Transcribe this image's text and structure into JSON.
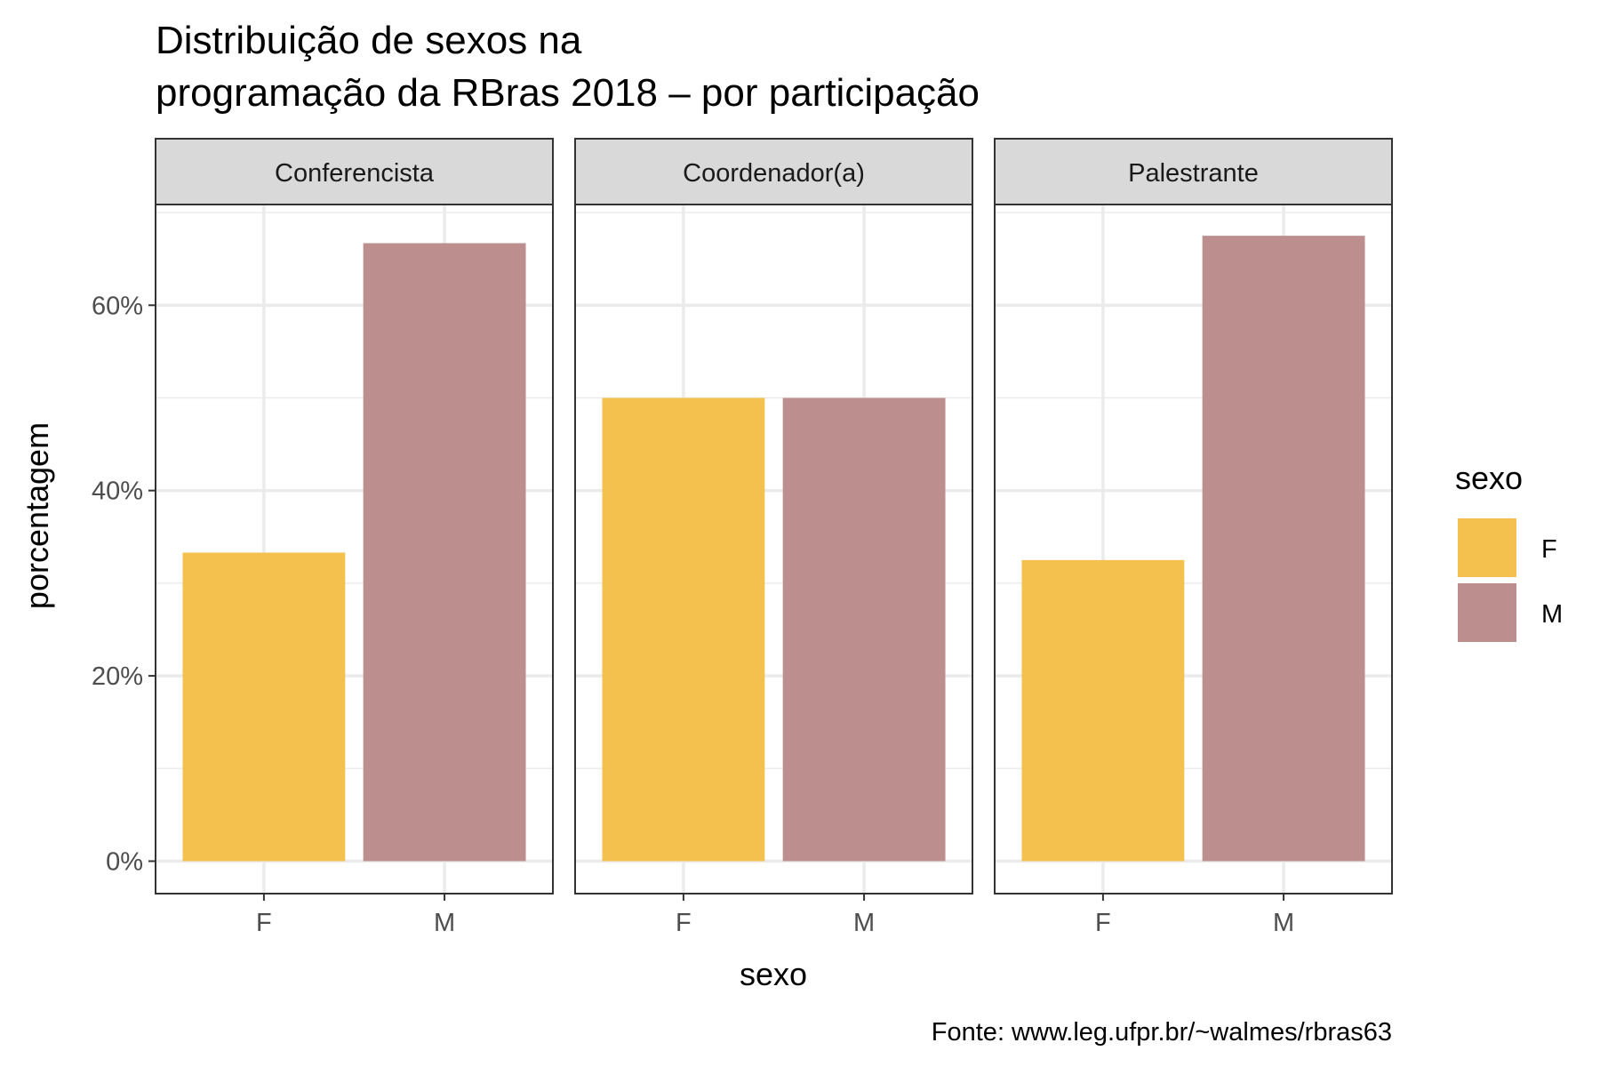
{
  "chart_data": {
    "type": "bar",
    "title": [
      "Distribuição de sexos na",
      "programação da RBras 2018 – por participação"
    ],
    "caption": "Fonte: www.leg.ufpr.br/~walmes/rbras63",
    "xlabel": "sexo",
    "ylabel": "porcentagem",
    "ylim": [
      0,
      70
    ],
    "yticks": [
      0,
      20,
      40,
      60
    ],
    "ytick_labels": [
      "0%",
      "20%",
      "40%",
      "60%"
    ],
    "grid": true,
    "categories": [
      "F",
      "M"
    ],
    "facets": [
      {
        "label": "Conferencista",
        "values": [
          33.3,
          66.7
        ]
      },
      {
        "label": "Coordenador(a)",
        "values": [
          50.0,
          50.0
        ]
      },
      {
        "label": "Palestrante",
        "values": [
          32.5,
          67.5
        ]
      }
    ],
    "legend": {
      "title": "sexo",
      "position": "right",
      "entries": [
        {
          "label": "F",
          "color": "#F4C04E"
        },
        {
          "label": "M",
          "color": "#BC8E8D"
        }
      ]
    }
  }
}
